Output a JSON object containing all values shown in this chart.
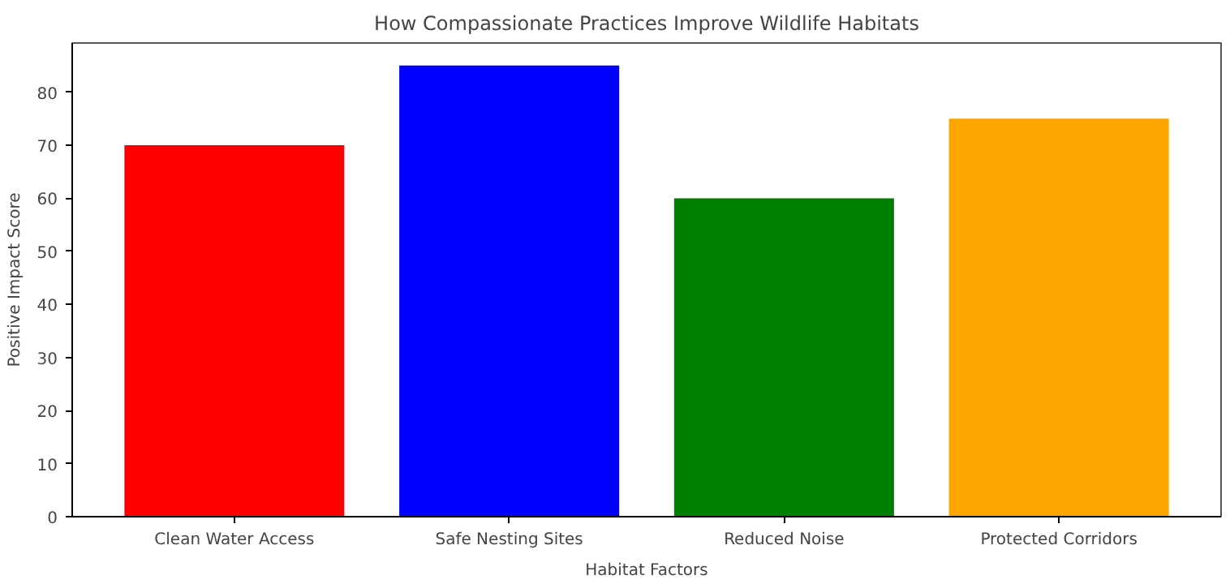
{
  "chart_data": {
    "type": "bar",
    "title": "How Compassionate Practices Improve Wildlife Habitats",
    "xlabel": "Habitat Factors",
    "ylabel": "Positive Impact Score",
    "categories": [
      "Clean Water Access",
      "Safe Nesting Sites",
      "Reduced Noise",
      "Protected Corridors"
    ],
    "values": [
      70,
      85,
      60,
      75
    ],
    "colors": [
      "#ff0000",
      "#0000ff",
      "#008000",
      "#ffa500"
    ],
    "ylim": [
      0,
      89.25
    ],
    "yticks": [
      0,
      10,
      20,
      30,
      40,
      50,
      60,
      70,
      80
    ],
    "grid": false
  }
}
